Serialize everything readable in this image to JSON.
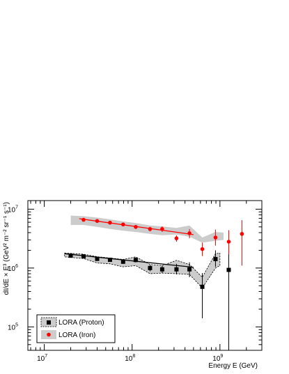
{
  "chart_data": {
    "type": "scatter",
    "xlabel": "Energy E (GeV)",
    "ylabel": "dI/dE × E³ (GeV² m⁻² sr⁻¹ s⁻¹)",
    "x_scale": "log",
    "y_scale": "log",
    "xlim": [
      6500000.0,
      3000000000.0
    ],
    "ylim": [
      40000.0,
      14000000.0
    ],
    "x_ticks": [
      {
        "value": 10000000.0,
        "base": "10",
        "exp": "7"
      },
      {
        "value": 100000000.0,
        "base": "10",
        "exp": "8"
      },
      {
        "value": 1000000000.0,
        "base": "10",
        "exp": "9"
      }
    ],
    "y_ticks": [
      {
        "value": 100000.0,
        "base": "10",
        "exp": "5"
      },
      {
        "value": 1000000.0,
        "base": "10",
        "exp": "6"
      },
      {
        "value": 10000000.0,
        "base": "10",
        "exp": "7"
      }
    ],
    "legend_position": "bottom-left",
    "series": [
      {
        "name": "LORA (Proton)",
        "marker": "square",
        "color": "#000000",
        "band_color": "#cccccc",
        "band_style": "dashed-outline",
        "points": [
          {
            "x": 20000000.0,
            "y": 1620000.0,
            "lo": 1500000.0,
            "hi": 1750000.0
          },
          {
            "x": 28000000.0,
            "y": 1580000.0,
            "lo": 1460000.0,
            "hi": 1700000.0
          },
          {
            "x": 40000000.0,
            "y": 1430000.0,
            "lo": 1330000.0,
            "hi": 1540000.0
          },
          {
            "x": 56000000.0,
            "y": 1380000.0,
            "lo": 1280000.0,
            "hi": 1480000.0
          },
          {
            "x": 79000000.0,
            "y": 1280000.0,
            "lo": 1180000.0,
            "hi": 1380000.0
          },
          {
            "x": 110000000.0,
            "y": 1370000.0,
            "lo": 1250000.0,
            "hi": 1500000.0
          },
          {
            "x": 160000000.0,
            "y": 1000000.0,
            "lo": 880000.0,
            "hi": 1130000.0
          },
          {
            "x": 220000000.0,
            "y": 950000.0,
            "lo": 820000.0,
            "hi": 1100000.0
          },
          {
            "x": 320000000.0,
            "y": 950000.0,
            "lo": 780000.0,
            "hi": 1180000.0
          },
          {
            "x": 450000000.0,
            "y": 950000.0,
            "lo": 700000.0,
            "hi": 1250000.0
          },
          {
            "x": 630000000.0,
            "y": 480000.0,
            "lo": 140000.0,
            "hi": 820000.0
          },
          {
            "x": 890000000.0,
            "y": 1420000.0,
            "lo": 1050000.0,
            "hi": 2000000.0
          },
          {
            "x": 1260000000.0,
            "y": 930000.0,
            "lo": 40000.0,
            "hi": 1900000.0
          }
        ],
        "band": [
          {
            "x": 17000000.0,
            "lo": 1550000.0,
            "hi": 1800000.0
          },
          {
            "x": 28000000.0,
            "lo": 1450000.0,
            "hi": 1720000.0
          },
          {
            "x": 40000000.0,
            "lo": 1220000.0,
            "hi": 1560000.0
          },
          {
            "x": 56000000.0,
            "lo": 1180000.0,
            "hi": 1480000.0
          },
          {
            "x": 79000000.0,
            "lo": 1050000.0,
            "hi": 1400000.0
          },
          {
            "x": 110000000.0,
            "lo": 1100000.0,
            "hi": 1550000.0
          },
          {
            "x": 160000000.0,
            "lo": 800000.0,
            "hi": 1150000.0
          },
          {
            "x": 220000000.0,
            "lo": 820000.0,
            "hi": 1100000.0
          },
          {
            "x": 320000000.0,
            "lo": 800000.0,
            "hi": 1350000.0
          },
          {
            "x": 450000000.0,
            "lo": 780000.0,
            "hi": 1150000.0
          },
          {
            "x": 630000000.0,
            "lo": 460000.0,
            "hi": 700000.0
          },
          {
            "x": 890000000.0,
            "lo": 1000000.0,
            "hi": 1750000.0
          },
          {
            "x": 1000000000.0,
            "lo": 1100000.0,
            "hi": 1800000.0
          }
        ],
        "fit": {
          "x_start": 17000000.0,
          "x_end": 500000000.0,
          "y_start": 1750000.0,
          "y_end": 1030000.0
        }
      },
      {
        "name": "LORA (Iron)",
        "marker": "circle",
        "color": "#ff0000",
        "band_color": "#cccccc",
        "band_style": "filled",
        "points": [
          {
            "x": 28000000.0,
            "y": 6600000.0,
            "lo": 6200000.0,
            "hi": 7000000.0
          },
          {
            "x": 40000000.0,
            "y": 6300000.0,
            "lo": 5900000.0,
            "hi": 6700000.0
          },
          {
            "x": 56000000.0,
            "y": 5900000.0,
            "lo": 5500000.0,
            "hi": 6300000.0
          },
          {
            "x": 79000000.0,
            "y": 5500000.0,
            "lo": 5100000.0,
            "hi": 5900000.0
          },
          {
            "x": 110000000.0,
            "y": 5000000.0,
            "lo": 4600000.0,
            "hi": 5400000.0
          },
          {
            "x": 160000000.0,
            "y": 4600000.0,
            "lo": 4200000.0,
            "hi": 5000000.0
          },
          {
            "x": 220000000.0,
            "y": 4600000.0,
            "lo": 4100000.0,
            "hi": 5100000.0
          },
          {
            "x": 320000000.0,
            "y": 3200000.0,
            "lo": 2800000.0,
            "hi": 3600000.0
          },
          {
            "x": 450000000.0,
            "y": 3900000.0,
            "lo": 3200000.0,
            "hi": 4600000.0
          },
          {
            "x": 630000000.0,
            "y": 2100000.0,
            "lo": 1600000.0,
            "hi": 2700000.0
          },
          {
            "x": 890000000.0,
            "y": 3300000.0,
            "lo": 2400000.0,
            "hi": 4500000.0
          },
          {
            "x": 1260000000.0,
            "y": 2800000.0,
            "lo": 1700000.0,
            "hi": 4400000.0
          },
          {
            "x": 1780000000.0,
            "y": 3800000.0,
            "lo": 1100000.0,
            "hi": 6500000.0
          }
        ],
        "band": [
          {
            "x": 20000000.0,
            "lo": 5400000.0,
            "hi": 7800000.0
          },
          {
            "x": 28000000.0,
            "lo": 5400000.0,
            "hi": 7600000.0
          },
          {
            "x": 40000000.0,
            "lo": 5000000.0,
            "hi": 7200000.0
          },
          {
            "x": 56000000.0,
            "lo": 4600000.0,
            "hi": 6700000.0
          },
          {
            "x": 79000000.0,
            "lo": 4300000.0,
            "hi": 6200000.0
          },
          {
            "x": 110000000.0,
            "lo": 4100000.0,
            "hi": 5800000.0
          },
          {
            "x": 160000000.0,
            "lo": 3800000.0,
            "hi": 5300000.0
          },
          {
            "x": 220000000.0,
            "lo": 3600000.0,
            "hi": 5100000.0
          },
          {
            "x": 320000000.0,
            "lo": 3700000.0,
            "hi": 4800000.0
          },
          {
            "x": 450000000.0,
            "lo": 3400000.0,
            "hi": 5300000.0
          },
          {
            "x": 630000000.0,
            "lo": 2700000.0,
            "hi": 3300000.0
          },
          {
            "x": 890000000.0,
            "lo": 2900000.0,
            "hi": 4100000.0
          },
          {
            "x": 1100000000.0,
            "lo": 3000000.0,
            "hi": 4000000.0
          }
        ],
        "fit": {
          "x_start": 25000000.0,
          "x_end": 500000000.0,
          "y_start": 6900000.0,
          "y_end": 3700000.0
        }
      }
    ]
  }
}
